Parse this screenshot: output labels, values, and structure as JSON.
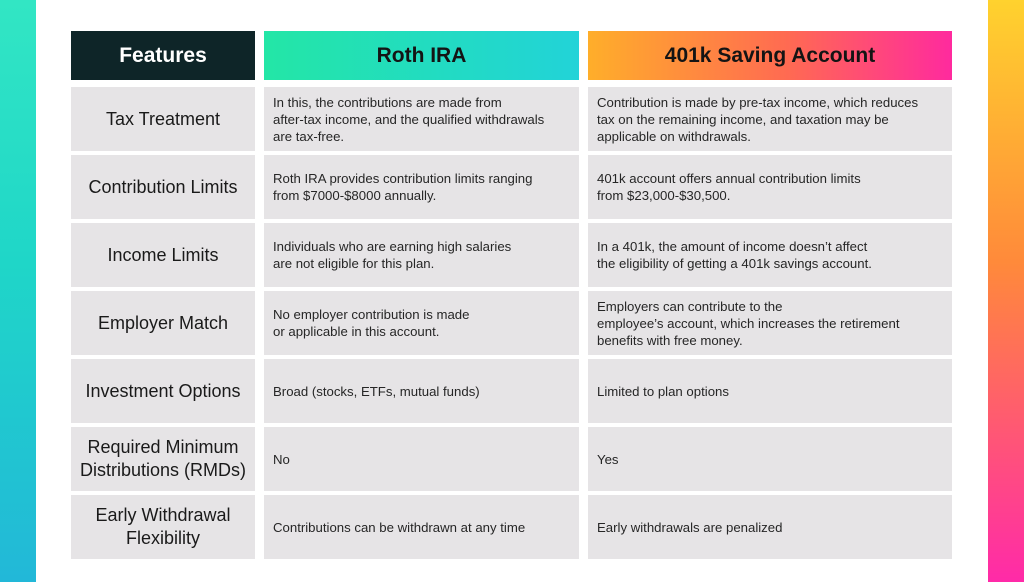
{
  "header": {
    "features": "Features",
    "roth": "Roth IRA",
    "k401": "401k Saving Account"
  },
  "rows": [
    {
      "feature": "Tax Treatment",
      "roth": "In this, the contributions are made from\nafter-tax income, and the qualified withdrawals\nare tax-free.",
      "k401": "Contribution is made by pre-tax income, which reduces\ntax on the remaining income, and taxation may be\napplicable on withdrawals."
    },
    {
      "feature": "Contribution Limits",
      "roth": "Roth IRA provides contribution limits ranging\nfrom $7000-$8000 annually.",
      "k401": "401k account offers annual contribution limits\nfrom $23,000-$30,500."
    },
    {
      "feature": "Income Limits",
      "roth": "Individuals who are earning high salaries\nare not eligible for this plan.",
      "k401": "In a 401k, the amount of income doesn’t affect\nthe eligibility of getting a 401k savings account."
    },
    {
      "feature": "Employer Match",
      "roth": "No employer contribution is made\nor applicable in this account.",
      "k401": "Employers can contribute to the\nemployee’s account, which increases the retirement\nbenefits with free money."
    },
    {
      "feature": "Investment Options",
      "roth": "Broad (stocks, ETFs, mutual funds)",
      "k401": "Limited to plan options"
    },
    {
      "feature": "Required Minimum\nDistributions (RMDs)",
      "roth": "No",
      "k401": "Yes"
    },
    {
      "feature": "Early Withdrawal\nFlexibility",
      "roth": "Contributions can be withdrawn at any time",
      "k401": "Early withdrawals are penalized"
    }
  ]
}
